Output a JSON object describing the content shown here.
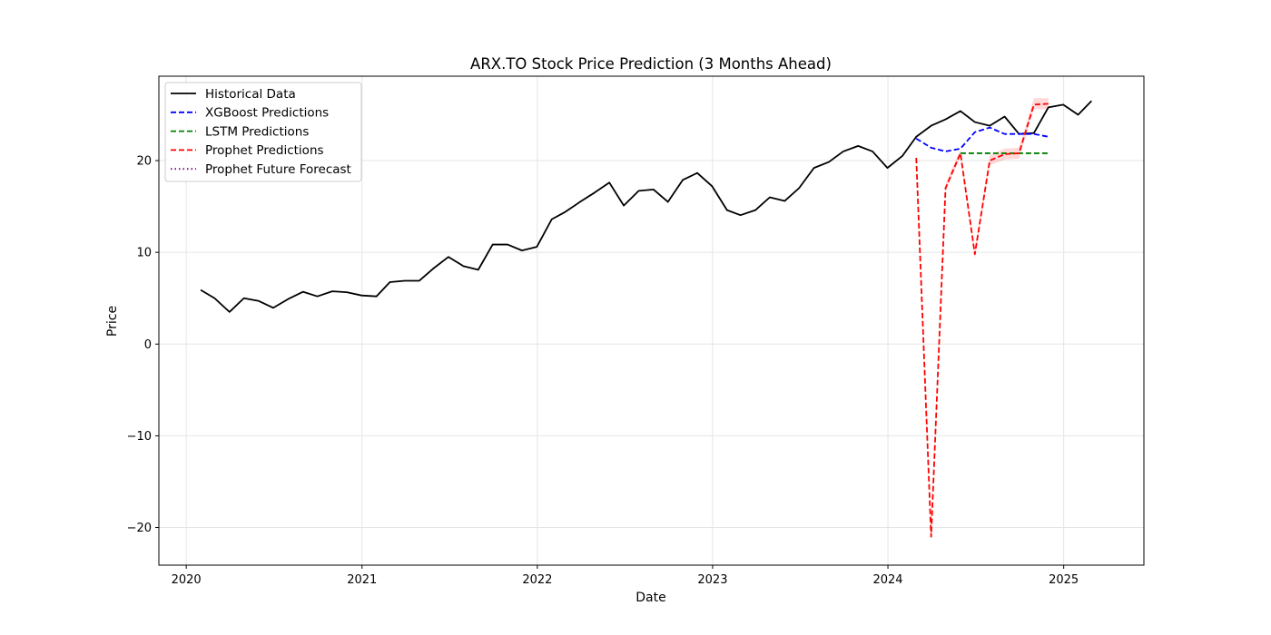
{
  "chart_data": {
    "type": "line",
    "title": "ARX.TO Stock Price Prediction (3 Months Ahead)",
    "xlabel": "Date",
    "ylabel": "Price",
    "x_ticks": [
      "2020",
      "2021",
      "2022",
      "2023",
      "2024",
      "2025"
    ],
    "y_ticks": [
      -20,
      -10,
      0,
      10,
      20
    ],
    "xlim": [
      "2019-11-05",
      "2025-06-17"
    ],
    "ylim": [
      -24.1,
      29.2
    ],
    "grid": true,
    "legend_position": "top-left",
    "series": [
      {
        "name": "Historical Data",
        "color": "#000000",
        "style": "solid",
        "points": [
          [
            "2020-01-31",
            5.9
          ],
          [
            "2020-02-29",
            5.0
          ],
          [
            "2020-03-31",
            3.5
          ],
          [
            "2020-04-30",
            5.0
          ],
          [
            "2020-05-31",
            4.7
          ],
          [
            "2020-06-30",
            3.95
          ],
          [
            "2020-07-31",
            4.9
          ],
          [
            "2020-08-31",
            5.7
          ],
          [
            "2020-09-30",
            5.2
          ],
          [
            "2020-10-31",
            5.75
          ],
          [
            "2020-11-30",
            5.65
          ],
          [
            "2020-12-31",
            5.3
          ],
          [
            "2021-01-31",
            5.2
          ],
          [
            "2021-02-28",
            6.75
          ],
          [
            "2021-03-31",
            6.9
          ],
          [
            "2021-04-30",
            6.9
          ],
          [
            "2021-05-31",
            8.3
          ],
          [
            "2021-06-30",
            9.5
          ],
          [
            "2021-07-31",
            8.5
          ],
          [
            "2021-08-31",
            8.1
          ],
          [
            "2021-09-30",
            10.85
          ],
          [
            "2021-10-31",
            10.85
          ],
          [
            "2021-11-30",
            10.2
          ],
          [
            "2021-12-31",
            10.6
          ],
          [
            "2022-01-31",
            13.6
          ],
          [
            "2022-02-28",
            14.4
          ],
          [
            "2022-03-31",
            15.5
          ],
          [
            "2022-04-30",
            16.5
          ],
          [
            "2022-05-31",
            17.6
          ],
          [
            "2022-06-30",
            15.1
          ],
          [
            "2022-07-31",
            16.7
          ],
          [
            "2022-08-31",
            16.85
          ],
          [
            "2022-09-30",
            15.5
          ],
          [
            "2022-10-31",
            17.9
          ],
          [
            "2022-11-30",
            18.65
          ],
          [
            "2022-12-31",
            17.2
          ],
          [
            "2023-01-31",
            14.6
          ],
          [
            "2023-02-28",
            14.05
          ],
          [
            "2023-03-31",
            14.6
          ],
          [
            "2023-04-30",
            16.0
          ],
          [
            "2023-05-31",
            15.6
          ],
          [
            "2023-06-30",
            17.0
          ],
          [
            "2023-07-31",
            19.2
          ],
          [
            "2023-08-31",
            19.85
          ],
          [
            "2023-09-30",
            21.0
          ],
          [
            "2023-10-31",
            21.6
          ],
          [
            "2023-11-30",
            21.0
          ],
          [
            "2023-12-31",
            19.2
          ],
          [
            "2024-01-31",
            20.5
          ],
          [
            "2024-02-29",
            22.6
          ],
          [
            "2024-03-31",
            23.8
          ],
          [
            "2024-04-30",
            24.5
          ],
          [
            "2024-05-31",
            25.4
          ],
          [
            "2024-06-30",
            24.2
          ],
          [
            "2024-07-31",
            23.8
          ],
          [
            "2024-08-31",
            24.8
          ],
          [
            "2024-09-30",
            22.9
          ],
          [
            "2024-10-31",
            23.0
          ],
          [
            "2024-11-30",
            25.8
          ],
          [
            "2024-12-31",
            26.1
          ],
          [
            "2025-01-31",
            25.0
          ],
          [
            "2025-02-28",
            26.5
          ]
        ]
      },
      {
        "name": "XGBoost Predictions",
        "color": "#0000ff",
        "style": "dashed",
        "points": [
          [
            "2024-02-29",
            22.4
          ],
          [
            "2024-03-31",
            21.4
          ],
          [
            "2024-04-30",
            21.0
          ],
          [
            "2024-05-31",
            21.3
          ],
          [
            "2024-06-30",
            23.1
          ],
          [
            "2024-07-31",
            23.6
          ],
          [
            "2024-08-31",
            22.9
          ],
          [
            "2024-09-30",
            22.9
          ],
          [
            "2024-10-31",
            22.9
          ],
          [
            "2024-11-30",
            22.6
          ]
        ]
      },
      {
        "name": "LSTM Predictions",
        "color": "#008000",
        "style": "dashed",
        "points": [
          [
            "2024-05-31",
            20.8
          ],
          [
            "2024-06-30",
            20.8
          ],
          [
            "2024-07-31",
            20.8
          ],
          [
            "2024-08-31",
            20.8
          ],
          [
            "2024-09-30",
            20.8
          ],
          [
            "2024-10-31",
            20.8
          ],
          [
            "2024-11-30",
            20.8
          ]
        ]
      },
      {
        "name": "Prophet Predictions",
        "color": "#ff0000",
        "style": "dashed",
        "points": [
          [
            "2024-02-29",
            20.3
          ],
          [
            "2024-03-31",
            -21.0
          ],
          [
            "2024-04-30",
            17.0
          ],
          [
            "2024-05-31",
            20.8
          ],
          [
            "2024-06-30",
            9.8
          ],
          [
            "2024-07-31",
            20.0
          ],
          [
            "2024-08-31",
            20.7
          ],
          [
            "2024-09-30",
            20.8
          ],
          [
            "2024-10-31",
            26.1
          ],
          [
            "2024-11-30",
            26.2
          ]
        ],
        "band": [
          [
            19.8,
            20.8
          ],
          [
            -21.5,
            -20.4
          ],
          [
            16.6,
            17.5
          ],
          [
            20.4,
            21.2
          ],
          [
            9.3,
            10.4
          ],
          [
            19.5,
            20.6
          ],
          [
            20.1,
            21.3
          ],
          [
            20.2,
            21.4
          ],
          [
            25.6,
            26.8
          ],
          [
            25.6,
            26.8
          ]
        ]
      },
      {
        "name": "Prophet Future Forecast",
        "color": "#800080",
        "style": "dotted",
        "points": []
      }
    ]
  }
}
